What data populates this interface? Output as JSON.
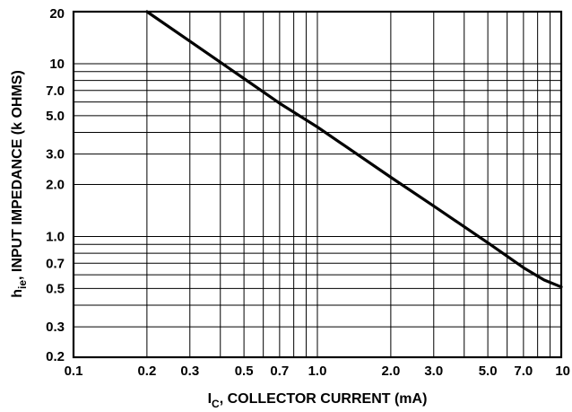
{
  "chart_data": {
    "type": "line",
    "x_scale": "log",
    "y_scale": "log",
    "xlim": [
      0.1,
      10
    ],
    "ylim": [
      0.2,
      20
    ],
    "grid": true,
    "x_tick_labels": [
      "0.1",
      "0.2",
      "0.3",
      "0.5",
      "0.7",
      "1.0",
      "2.0",
      "3.0",
      "5.0",
      "7.0",
      "10"
    ],
    "x_tick_values": [
      0.1,
      0.2,
      0.3,
      0.5,
      0.7,
      1.0,
      2.0,
      3.0,
      5.0,
      7.0,
      10
    ],
    "y_tick_labels": [
      "20",
      "10",
      "7.0",
      "5.0",
      "3.0",
      "2.0",
      "1.0",
      "0.7",
      "0.5",
      "0.3",
      "0.2"
    ],
    "y_tick_values": [
      20,
      10,
      7.0,
      5.0,
      3.0,
      2.0,
      1.0,
      0.7,
      0.5,
      0.3,
      0.2
    ],
    "x_grid_values": [
      0.1,
      0.2,
      0.3,
      0.4,
      0.5,
      0.6,
      0.7,
      0.8,
      0.9,
      1,
      2,
      3,
      4,
      5,
      6,
      7,
      8,
      9,
      10
    ],
    "y_grid_values": [
      0.2,
      0.3,
      0.4,
      0.5,
      0.6,
      0.7,
      0.8,
      0.9,
      1,
      2,
      3,
      4,
      5,
      6,
      7,
      8,
      9,
      10,
      20
    ],
    "xlabel": {
      "main": "I",
      "sub": "C",
      "rest": ", COLLECTOR CURRENT (mA)"
    },
    "ylabel": {
      "main": "h",
      "sub": "ie",
      "rest": ", INPUT IMPEDANCE (k OHMS)"
    },
    "series": [
      {
        "color": "#000000",
        "x": [
          0.2,
          0.3,
          0.5,
          0.7,
          1.0,
          2.0,
          3.0,
          5.0,
          7.0,
          8.5,
          10
        ],
        "y": [
          20,
          13.5,
          8.2,
          5.9,
          4.3,
          2.2,
          1.5,
          0.92,
          0.66,
          0.56,
          0.51
        ]
      }
    ]
  }
}
